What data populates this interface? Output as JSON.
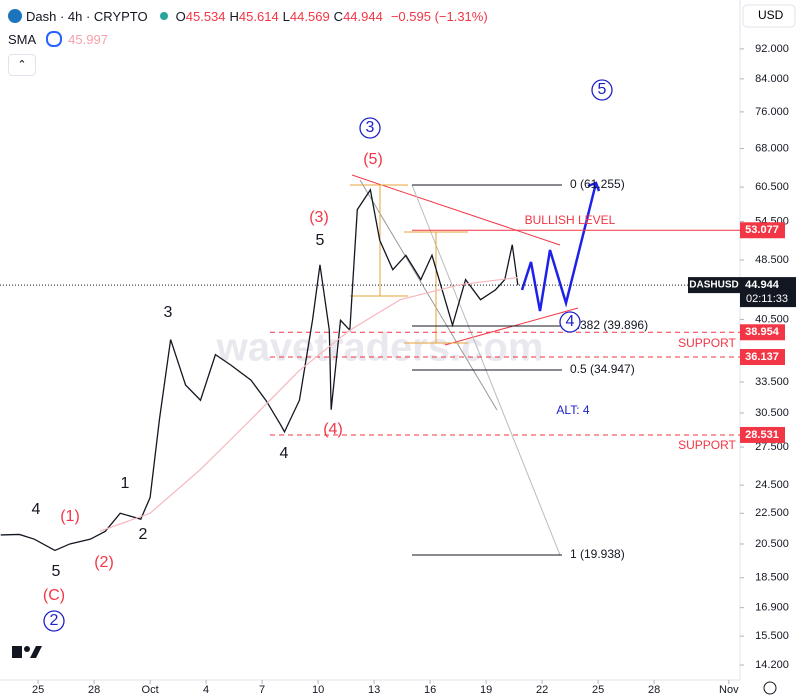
{
  "chart_data": {
    "type": "line",
    "title": "Dash · 4h · CRYPTO",
    "ohlc": [
      [
        "O",
        "45.534"
      ],
      [
        "H",
        "45.614"
      ],
      [
        "L",
        "44.569"
      ],
      [
        "C",
        "44.944"
      ]
    ],
    "change": "−0.595 (−1.31%)",
    "indicator": "SMA",
    "sma_value": 45.997,
    "currency": "USD",
    "log_scale": true,
    "grid": false,
    "series": [
      {
        "name": "DASHUSD",
        "color": "#131722",
        "x": [
          -2.0,
          -1.0,
          -0.2,
          0.9,
          1.7,
          2.8,
          3.6,
          4.4,
          5.5,
          6.0,
          6.5,
          7.1,
          7.9,
          8.7,
          9.5,
          10.3,
          11.4,
          12.2,
          13.0,
          13.2,
          14.0,
          14.7,
          15.1,
          15.6,
          15.7,
          16.2,
          16.7,
          17.1,
          17.8,
          18.3,
          19.0,
          19.7,
          20.5,
          21.1,
          21.8,
          22.2,
          22.9,
          23.7,
          24.5,
          25.0,
          25.4,
          25.7
        ],
        "values": [
          21.07,
          21.1,
          20.8,
          20.1,
          20.5,
          20.8,
          21.3,
          22.5,
          22.1,
          23.6,
          29.9,
          38.1,
          33.2,
          31.7,
          36.4,
          35.3,
          33.7,
          31.7,
          29.4,
          28.8,
          31.7,
          40.4,
          47.8,
          39.2,
          30.8,
          40.4,
          39.2,
          56.5,
          60.0,
          51.5,
          47.1,
          49.2,
          45.7,
          49.2,
          43.0,
          39.8,
          45.7,
          43.0,
          44.3,
          45.7,
          50.8,
          44.944
        ]
      },
      {
        "name": "SMA",
        "color": "#f7b6bd",
        "x": [
          3.3,
          6.0,
          8.7,
          11.4,
          14.0,
          16.7,
          19.4,
          22.6,
          25.7
        ],
        "values": [
          21.3,
          22.5,
          25.7,
          29.9,
          34.7,
          39.2,
          43.0,
          45.0,
          45.997
        ]
      }
    ],
    "last_price": 44.944,
    "countdown": "02:11:33",
    "ylim": [
      13.57,
      106.7
    ],
    "yticks": [
      {
        "value": 92,
        "label": "92.000"
      },
      {
        "value": 84,
        "label": "84.000"
      },
      {
        "value": 76,
        "label": "76.000"
      },
      {
        "value": 68,
        "label": "68.000"
      },
      {
        "value": 60.5,
        "label": "60.500"
      },
      {
        "value": 54.5,
        "label": "54.500"
      },
      {
        "value": 48.5,
        "label": "48.500"
      },
      {
        "value": 40.5,
        "label": "40.500"
      },
      {
        "value": 33.5,
        "label": "33.500"
      },
      {
        "value": 30.5,
        "label": "30.500"
      },
      {
        "value": 27.5,
        "label": "27.500"
      },
      {
        "value": 24.5,
        "label": "24.500"
      },
      {
        "value": 22.5,
        "label": "22.500"
      },
      {
        "value": 20.5,
        "label": "20.500"
      },
      {
        "value": 18.5,
        "label": "18.500"
      },
      {
        "value": 16.9,
        "label": "16.900"
      },
      {
        "value": 15.5,
        "label": "15.500"
      },
      {
        "value": 14.2,
        "label": "14.200"
      }
    ],
    "xlim": [
      -2.04,
      37.6
    ],
    "xticks": [
      {
        "value": 0,
        "label": "25"
      },
      {
        "value": 3,
        "label": "28"
      },
      {
        "value": 6,
        "label": "Oct"
      },
      {
        "value": 9,
        "label": "4"
      },
      {
        "value": 12,
        "label": "7"
      },
      {
        "value": 15,
        "label": "10"
      },
      {
        "value": 18,
        "label": "13"
      },
      {
        "value": 21,
        "label": "16"
      },
      {
        "value": 24,
        "label": "19"
      },
      {
        "value": 27,
        "label": "22"
      },
      {
        "value": 30,
        "label": "25"
      },
      {
        "value": 33,
        "label": "28"
      },
      {
        "value": 37,
        "label": "Nov"
      }
    ],
    "levels": [
      {
        "value": 53.077,
        "color": "#f23645",
        "style": "solid"
      },
      {
        "value": 38.954,
        "color": "#f23645",
        "style": "dashed"
      },
      {
        "value": 36.137,
        "color": "#f23645",
        "style": "dashed"
      },
      {
        "value": 28.531,
        "color": "#f23645",
        "style": "dashed"
      }
    ],
    "fib": [
      "0 (61.255)",
      "0.382 (39.896)",
      "0.5 (34.947)",
      "1 (19.938)"
    ],
    "annotations": [
      {
        "text": "4",
        "color": "#131722"
      },
      {
        "text": "(1)",
        "color": "#f23645"
      },
      {
        "text": "5",
        "color": "#131722"
      },
      {
        "text": "(2)",
        "color": "#f23645"
      },
      {
        "text": "(C)",
        "color": "#f23645"
      },
      {
        "text": "2",
        "color": "#1e22c8",
        "circled": true
      },
      {
        "text": "1",
        "color": "#131722"
      },
      {
        "text": "2",
        "color": "#131722"
      },
      {
        "text": "3",
        "color": "#131722"
      },
      {
        "text": "4",
        "color": "#131722"
      },
      {
        "text": "(4)",
        "color": "#f23645"
      },
      {
        "text": "5",
        "color": "#131722"
      },
      {
        "text": "(3)",
        "color": "#f23645"
      },
      {
        "text": "(5)",
        "color": "#f23645"
      },
      {
        "text": "3",
        "color": "#1e22c8",
        "circled": true
      },
      {
        "text": "5",
        "color": "#1e22c8",
        "circled": true
      },
      {
        "text": "4",
        "color": "#1e22c8",
        "circled": true
      },
      {
        "text": "ALT: 4",
        "color": "#1e22c8"
      },
      {
        "text": "BULLISH LEVEL",
        "color": "#f23645"
      },
      {
        "text": "SUPPORT",
        "color": "#f23645"
      },
      {
        "text": "SUPPORT",
        "color": "#f23645"
      }
    ]
  }
}
